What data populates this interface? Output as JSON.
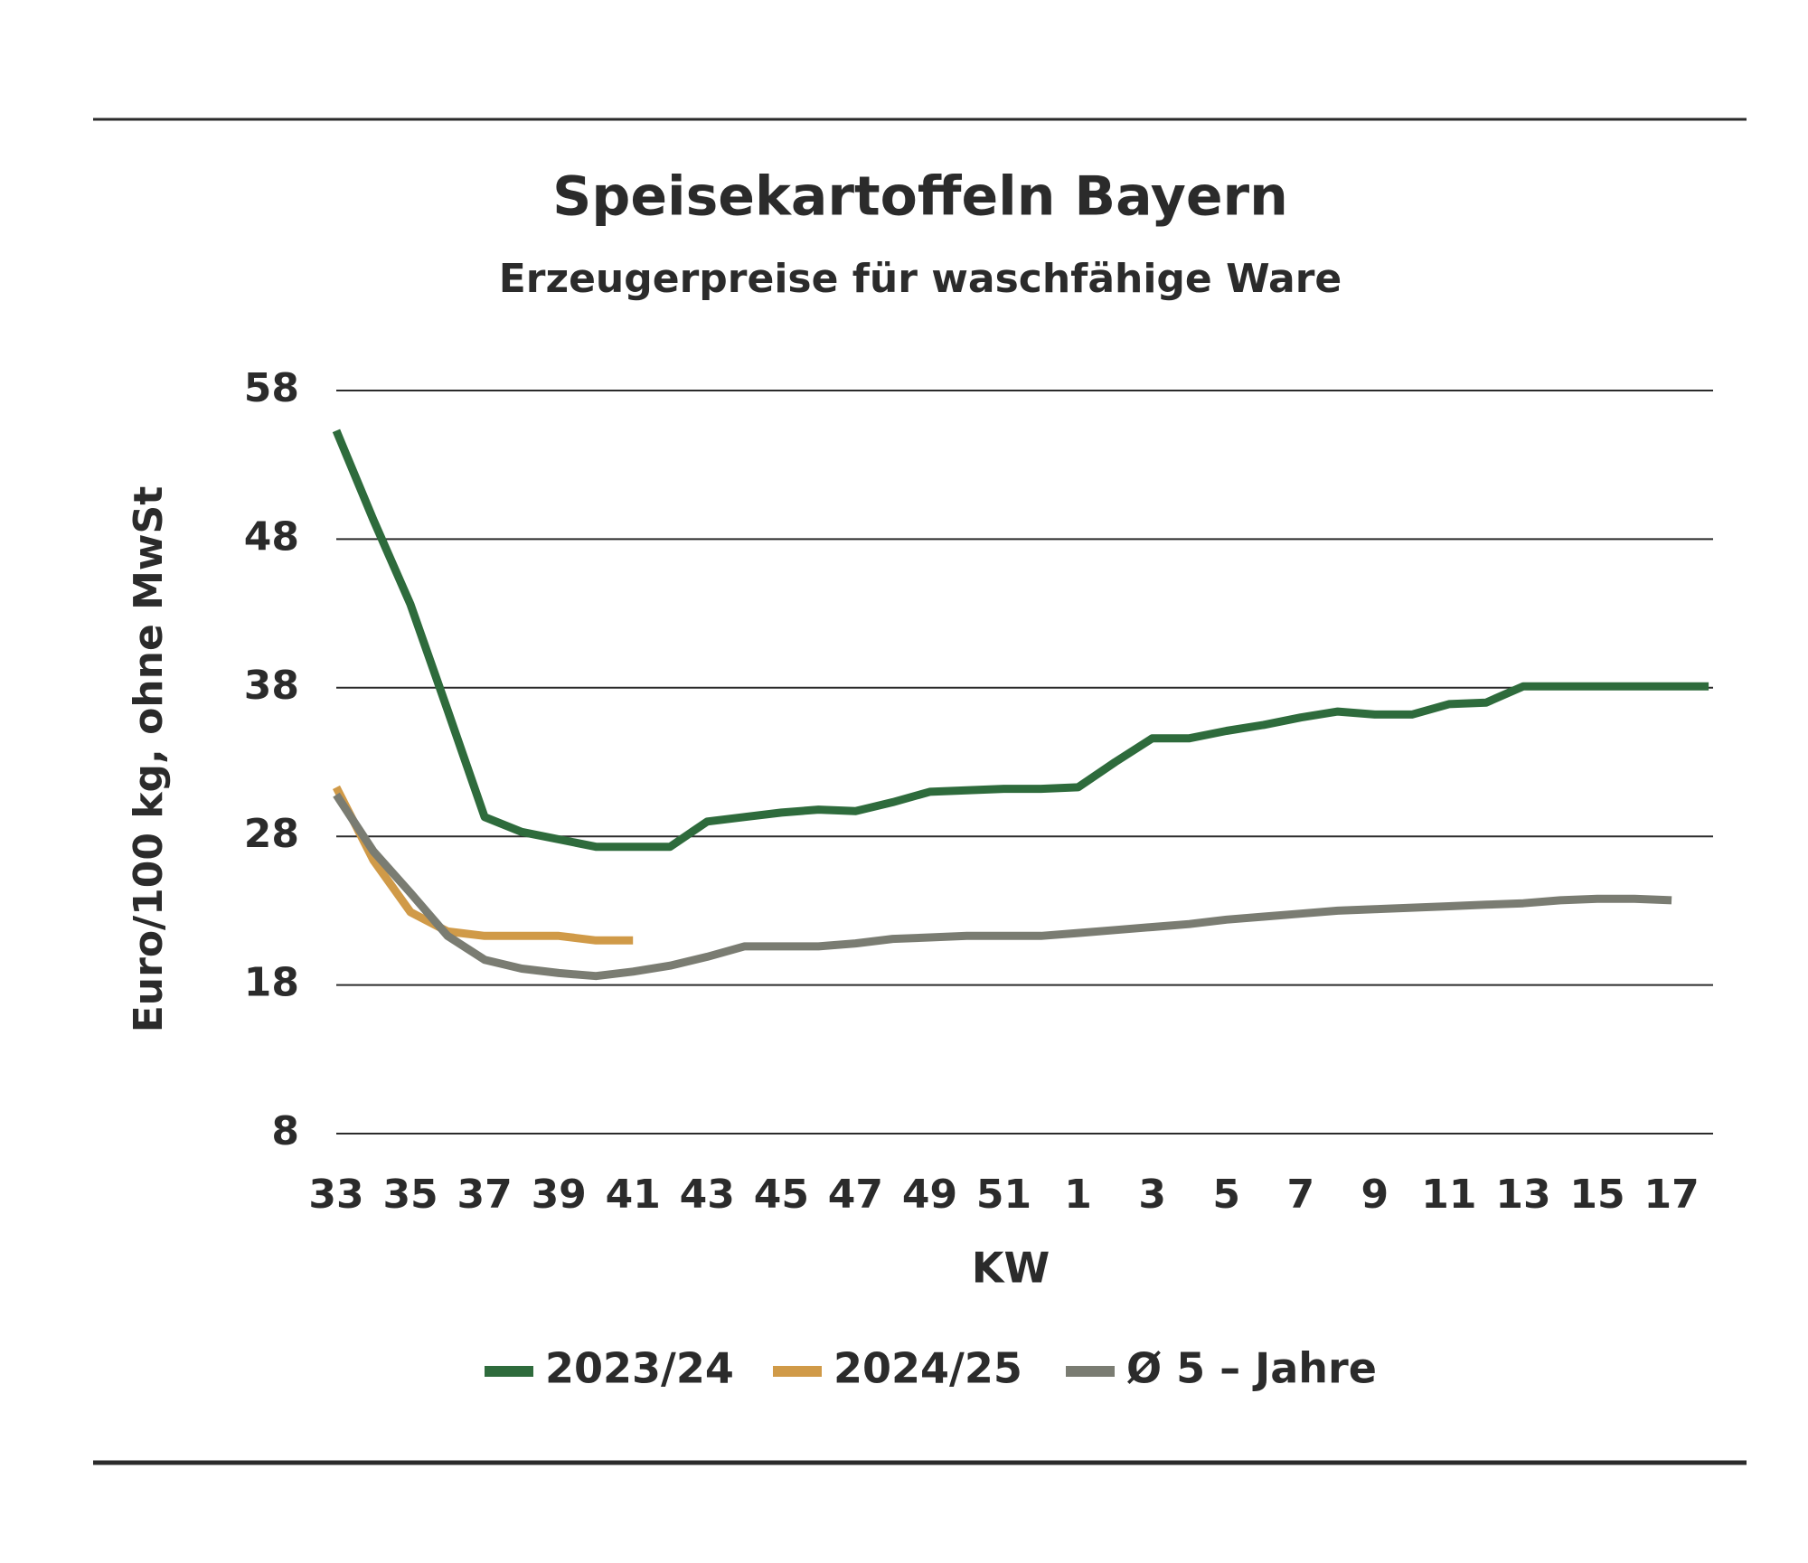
{
  "chart_data": {
    "type": "line",
    "title": "Speisekartoffeln Bayern",
    "subtitle": "Erzeugerpreise für waschfähige Ware",
    "x_label": "KW",
    "y_label": "Euro/100 kg, ohne MwSt",
    "categories": [
      "33",
      null,
      "35",
      null,
      "37",
      null,
      "39",
      null,
      "41",
      null,
      "43",
      null,
      "45",
      null,
      "47",
      null,
      "49",
      null,
      "51",
      null,
      "1",
      null,
      "3",
      null,
      "5",
      null,
      "7",
      null,
      "9",
      null,
      "11",
      null,
      "13",
      null,
      "15",
      null,
      "17",
      null
    ],
    "ylim": [
      8,
      58
    ],
    "yticks": [
      8,
      18,
      28,
      38,
      48,
      58
    ],
    "grid": true,
    "series": [
      {
        "name": "2023/24",
        "color": "#2e6b3c",
        "values": [
          55.3,
          49.3,
          43.6,
          36.5,
          29.3,
          28.3,
          27.8,
          27.3,
          27.3,
          27.3,
          29.0,
          29.3,
          29.6,
          29.8,
          29.7,
          30.3,
          31.0,
          31.1,
          31.2,
          31.2,
          31.3,
          33.0,
          34.6,
          34.6,
          35.1,
          35.5,
          36.0,
          36.4,
          36.2,
          36.2,
          36.9,
          37.0,
          38.1,
          38.1,
          38.1,
          38.1,
          38.1,
          38.1
        ]
      },
      {
        "name": "2024/25",
        "color": "#d09a48",
        "values": [
          31.3,
          26.4,
          22.9,
          21.6,
          21.3,
          21.3,
          21.3,
          21.0,
          21.0,
          null,
          null,
          null,
          null,
          null,
          null,
          null,
          null,
          null,
          null,
          null,
          null,
          null,
          null,
          null,
          null,
          null,
          null,
          null,
          null,
          null,
          null,
          null,
          null,
          null,
          null,
          null,
          null,
          null
        ]
      },
      {
        "name": "Ø 5 – Jahre",
        "color": "#7a7c72",
        "values": [
          30.8,
          27.0,
          24.2,
          21.3,
          19.7,
          19.1,
          18.8,
          18.6,
          18.9,
          19.3,
          19.9,
          20.6,
          20.6,
          20.6,
          20.8,
          21.1,
          21.2,
          21.3,
          21.3,
          21.3,
          21.5,
          21.7,
          21.9,
          22.1,
          22.4,
          22.6,
          22.8,
          23.0,
          23.1,
          23.2,
          23.3,
          23.4,
          23.5,
          23.7,
          23.8,
          23.8,
          23.7,
          null
        ]
      }
    ]
  }
}
